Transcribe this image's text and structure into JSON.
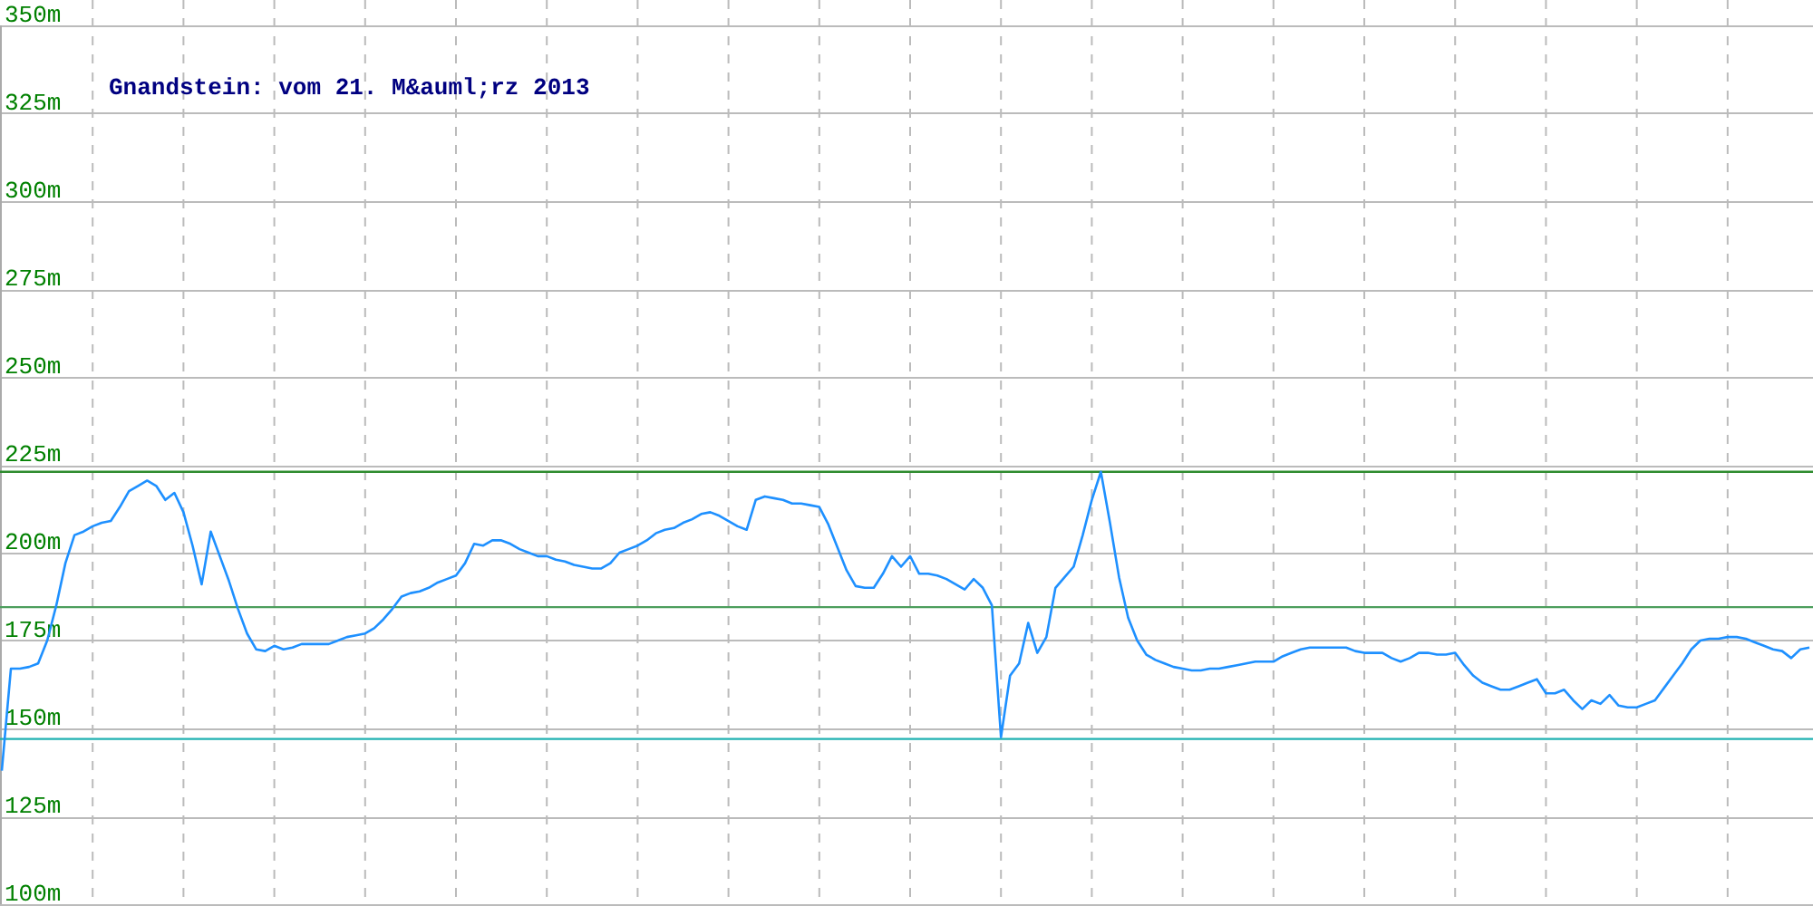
{
  "chart_data": {
    "type": "line",
    "title": "Gnandstein: vom 21. M&auml;rz 2013",
    "categories": [
      null,
      null,
      null,
      null,
      null,
      null,
      null,
      null,
      null,
      null,
      null,
      null,
      null,
      null,
      null,
      null,
      null,
      null,
      null,
      null,
      null,
      null,
      null,
      null,
      null,
      null,
      null,
      null,
      null,
      null,
      null,
      null,
      null,
      null,
      null,
      null,
      null,
      null,
      null,
      null,
      null,
      null,
      null,
      null,
      null,
      null,
      null,
      null,
      null,
      null,
      null,
      null,
      null,
      null,
      null,
      null,
      null,
      null,
      null,
      null,
      null,
      null,
      null,
      null,
      null,
      null,
      null,
      null,
      null,
      null,
      null,
      null,
      null,
      null,
      null,
      null,
      null,
      null,
      null,
      null,
      null,
      null,
      null,
      null,
      null,
      null,
      null,
      null,
      null,
      null,
      null,
      null,
      null,
      null,
      null,
      null,
      null,
      null,
      null,
      null,
      null,
      null,
      null,
      null,
      null,
      null,
      null,
      null,
      null,
      null,
      null,
      null,
      null,
      null,
      null,
      null,
      null,
      null,
      null,
      null,
      null,
      null,
      null,
      null,
      null,
      null,
      null,
      null,
      null,
      null,
      null,
      null,
      null,
      null,
      null,
      null,
      null,
      null,
      null,
      null,
      null,
      null,
      null,
      null,
      null,
      null,
      null,
      null,
      null,
      null,
      null,
      null,
      null,
      null,
      null,
      null,
      null,
      null,
      null,
      null,
      null,
      null,
      null,
      null,
      null,
      null,
      null,
      null,
      null,
      null,
      null,
      null,
      null,
      null,
      null,
      null,
      null,
      null,
      null,
      null,
      null,
      null,
      null,
      null,
      null,
      null,
      null,
      null,
      null,
      null,
      null,
      null,
      null,
      null,
      null,
      null,
      null,
      null,
      null,
      null
    ],
    "series": [
      {
        "color": "#1e90ff",
        "values": [
          138,
          167,
          167,
          167.5,
          168.5,
          175,
          185,
          197,
          205,
          206,
          207.5,
          208.5,
          209,
          213,
          217.5,
          219,
          220.5,
          219,
          215,
          217,
          211.5,
          202,
          191,
          206,
          199,
          192,
          184,
          177,
          172.5,
          172,
          173.5,
          172.5,
          173,
          174,
          174,
          174,
          174,
          175,
          176,
          176.5,
          177,
          178.5,
          181,
          184,
          187.5,
          188.5,
          189,
          190,
          191.5,
          192.5,
          193.5,
          197,
          202.5,
          202,
          203.5,
          203.5,
          202.5,
          201,
          200,
          199,
          199,
          198,
          197.5,
          196.5,
          196,
          195.5,
          195.5,
          197,
          200,
          201,
          202,
          203.5,
          205.5,
          206.5,
          207,
          208.5,
          209.5,
          211,
          211.5,
          210.5,
          209,
          207.5,
          206.5,
          215,
          216,
          215.5,
          215,
          214,
          214,
          213.5,
          213,
          208,
          201.5,
          195,
          190.5,
          190,
          190,
          194,
          199,
          196,
          199,
          194,
          194,
          193.5,
          192.5,
          191,
          189.5,
          192.5,
          190,
          185,
          147.5,
          165,
          168.5,
          180,
          171.5,
          176,
          190,
          193,
          196,
          205,
          215,
          223,
          208.5,
          193,
          181.5,
          175,
          171,
          169.5,
          168.5,
          167.5,
          167,
          166.5,
          166.5,
          167,
          167,
          167.5,
          168,
          168.5,
          169,
          169,
          169,
          170.5,
          171.5,
          172.5,
          173,
          173,
          173,
          173,
          173,
          172,
          171.5,
          171.5,
          171.5,
          170,
          169,
          170,
          171.5,
          171.5,
          171,
          171,
          171.5,
          168,
          165,
          163,
          162,
          161,
          161,
          162,
          163,
          164,
          160,
          160,
          161,
          158,
          155.5,
          158,
          157,
          159.5,
          156.5,
          156,
          156,
          157,
          158,
          161.5,
          165,
          168.5,
          172.5,
          175,
          175.5,
          175.5,
          176,
          176,
          175.5,
          174.5,
          173.5,
          172.5,
          172,
          170,
          172.5,
          173
        ]
      }
    ],
    "ylim": [
      100,
      350
    ],
    "yticks": [
      {
        "value": 100,
        "label": "100m"
      },
      {
        "value": 125,
        "label": "125m"
      },
      {
        "value": 150,
        "label": "150m"
      },
      {
        "value": 175,
        "label": "175m"
      },
      {
        "value": 200,
        "label": "200m"
      },
      {
        "value": 225,
        "label": "225m"
      },
      {
        "value": 250,
        "label": "250m"
      },
      {
        "value": 275,
        "label": "275m"
      },
      {
        "value": 300,
        "label": "300m"
      },
      {
        "value": 325,
        "label": "325m"
      },
      {
        "value": 350,
        "label": "350m"
      }
    ],
    "ref_lines": [
      {
        "axis": "y",
        "value": 223,
        "color": "#2e8b2e"
      },
      {
        "axis": "y",
        "value": 184.5,
        "color": "#4c9e5c"
      },
      {
        "axis": "y",
        "value": 147,
        "color": "#20b2b2"
      }
    ],
    "grid": true,
    "marker": "none",
    "line_style": "solid"
  }
}
